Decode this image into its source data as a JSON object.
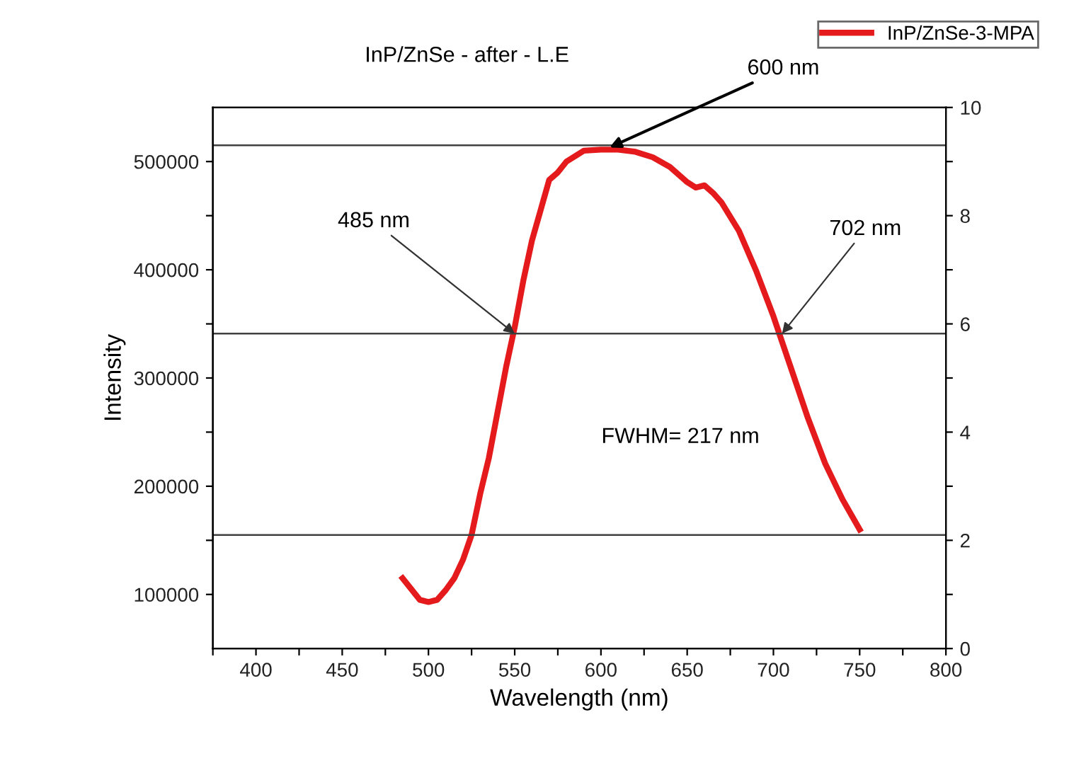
{
  "chart_data": {
    "type": "line",
    "title": "InP/ZnSe - after - L.E",
    "xlabel": "Wavelength (nm)",
    "ylabel": "Intensity",
    "x": [
      485,
      490,
      495,
      500,
      505,
      510,
      515,
      520,
      525,
      530,
      535,
      540,
      545,
      550,
      555,
      560,
      565,
      570,
      575,
      580,
      590,
      600,
      610,
      620,
      630,
      640,
      650,
      655,
      660,
      665,
      670,
      680,
      690,
      700,
      710,
      720,
      730,
      740,
      750
    ],
    "series": [
      {
        "name": "InP/ZnSe-3-MPA",
        "color": "#e41a1c",
        "values": [
          115000,
          105000,
          95000,
          93000,
          95000,
          104000,
          115000,
          132000,
          155000,
          193000,
          226000,
          268000,
          310000,
          347000,
          390000,
          427000,
          455000,
          483000,
          490000,
          500000,
          510000,
          511000,
          511000,
          509000,
          504000,
          495000,
          481000,
          476000,
          478000,
          471000,
          462000,
          436000,
          399000,
          357000,
          310000,
          263000,
          221000,
          188000,
          160000
        ]
      }
    ],
    "xlim": [
      375,
      800
    ],
    "xticks": [
      {
        "value": 375,
        "label": null
      },
      400,
      {
        "value": 425,
        "label": null
      },
      450,
      {
        "value": 475,
        "label": null
      },
      500,
      {
        "value": 525,
        "label": null
      },
      550,
      {
        "value": 575,
        "label": null
      },
      600,
      {
        "value": 625,
        "label": null
      },
      650,
      {
        "value": 675,
        "label": null
      },
      700,
      {
        "value": 725,
        "label": null
      },
      750,
      {
        "value": 775,
        "label": null
      },
      800
    ],
    "ylim": [
      50000,
      550000
    ],
    "yticks": [
      100000,
      {
        "value": 150000,
        "label": null
      },
      200000,
      {
        "value": 250000,
        "label": null
      },
      300000,
      {
        "value": 350000,
        "label": null
      },
      400000,
      {
        "value": 450000,
        "label": null
      },
      500000
    ],
    "y2lim": [
      0,
      10
    ],
    "y2ticks": [
      0,
      {
        "value": 1,
        "label": null
      },
      2,
      {
        "value": 3,
        "label": null
      },
      4,
      {
        "value": 5,
        "label": null
      },
      6,
      {
        "value": 7,
        "label": null
      },
      8,
      {
        "value": 9,
        "label": null
      },
      10
    ],
    "ref_lines": [
      {
        "axis": "y",
        "value": 515000,
        "color": "#404040"
      },
      {
        "axis": "y",
        "value": 341000,
        "color": "#404040"
      },
      {
        "axis": "y",
        "value": 155000,
        "color": "#404040"
      }
    ],
    "annotations": [
      {
        "text": "600 nm",
        "x": 605,
        "y": 513000
      },
      {
        "text": "485 nm",
        "x": 550,
        "y": 341000
      },
      {
        "text": "702 nm",
        "x": 705,
        "y": 341000
      },
      "FWHM= 217 nm"
    ],
    "grid": false,
    "legend": "top right",
    "marker": "none",
    "line_style": "solid"
  }
}
